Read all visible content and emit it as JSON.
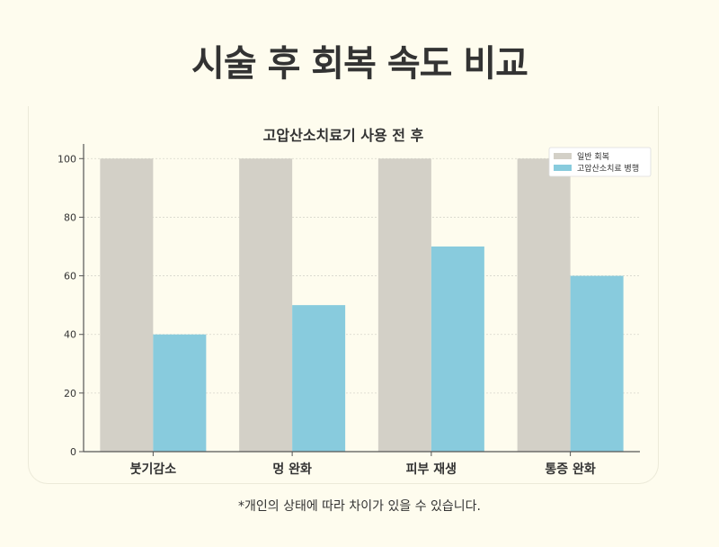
{
  "page_title": "시술 후 회복 속도 비교",
  "footnote": "*개인의 상태에 따라 차이가 있을 수 있습니다.",
  "colors": {
    "background": "#fefcee",
    "series_general": "#d3d0c7",
    "series_hbot": "#88cbdd",
    "text": "#333333"
  },
  "chart_data": {
    "type": "bar",
    "title": "고압산소치료기 사용 전 후",
    "xlabel": "",
    "ylabel": "",
    "categories": [
      "붓기감소",
      "멍 완화",
      "피부 재생",
      "통증 완화"
    ],
    "series": [
      {
        "name": "일반 회복",
        "color": "#d3d0c7",
        "values": [
          100,
          100,
          100,
          100
        ]
      },
      {
        "name": "고압산소치료 병행",
        "color": "#88cbdd",
        "values": [
          40,
          50,
          70,
          60
        ]
      }
    ],
    "ylim": [
      0,
      105
    ],
    "yticks": [
      "0",
      "20",
      "40",
      "60",
      "80",
      "100"
    ],
    "grid": true,
    "legend_position": "top-right"
  }
}
